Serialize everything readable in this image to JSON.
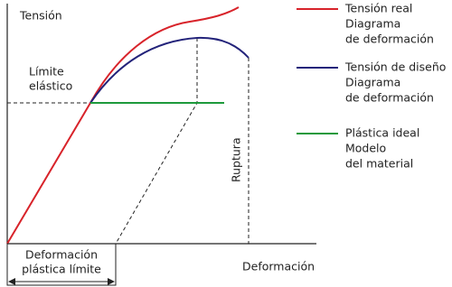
{
  "axes": {
    "y_label": "Tensión",
    "x_label": "Deformación"
  },
  "annotations": {
    "elastic_limit": [
      "Límite",
      "elástico"
    ],
    "rupture": "Ruptura",
    "plastic_strain": [
      "Deformación",
      "plástica límite"
    ]
  },
  "legend": [
    {
      "lines": [
        "Tensión real",
        "Diagrama",
        "de deformación"
      ]
    },
    {
      "lines": [
        "Tensión de diseño",
        "Diagrama",
        "de deformación"
      ]
    },
    {
      "lines": [
        "Plástica ideal",
        "Modelo",
        "del material"
      ]
    }
  ]
}
